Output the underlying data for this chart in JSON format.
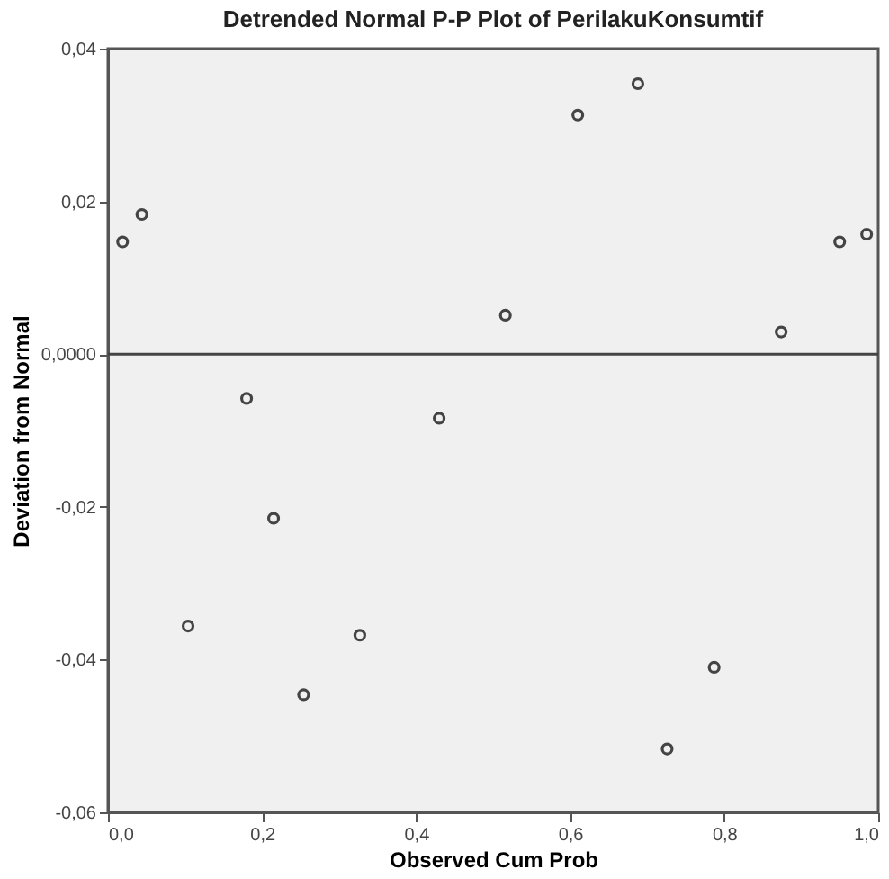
{
  "chart_data": {
    "type": "scatter",
    "title": "Detrended Normal P-P Plot of PerilakuKonsumtif",
    "xlabel": "Observed Cum Prob",
    "ylabel": "Deviation from Normal",
    "x": [
      0.019,
      0.044,
      0.104,
      0.18,
      0.215,
      0.254,
      0.327,
      0.43,
      0.516,
      0.61,
      0.688,
      0.726,
      0.787,
      0.874,
      0.95,
      0.985
    ],
    "series": [
      {
        "color": "#444444",
        "values": [
          0.0147,
          0.0183,
          -0.0356,
          -0.0058,
          -0.0215,
          -0.0446,
          -0.0368,
          -0.0084,
          0.0051,
          0.0313,
          0.0354,
          -0.0517,
          -0.041,
          0.0029,
          0.0147,
          0.0157
        ]
      }
    ],
    "marker": "circle",
    "xlim": [
      0,
      1
    ],
    "ylim": [
      -0.06,
      0.04
    ],
    "xticks": [
      {
        "value": 0,
        "label": "0,0"
      },
      {
        "value": 0.2,
        "label": "0,2"
      },
      {
        "value": 0.4,
        "label": "0,4"
      },
      {
        "value": 0.6,
        "label": "0,6"
      },
      {
        "value": 0.8,
        "label": "0,8"
      },
      {
        "value": 1,
        "label": "1,0"
      }
    ],
    "yticks": [
      {
        "value": -0.06,
        "label": "-0,06"
      },
      {
        "value": -0.04,
        "label": "-0,04"
      },
      {
        "value": -0.02,
        "label": "-0,02"
      },
      {
        "value": 0,
        "label": "0,0000"
      },
      {
        "value": 0.02,
        "label": "0,02"
      },
      {
        "value": 0.04,
        "label": "0,04"
      }
    ],
    "ref_lines": [
      {
        "axis": "y",
        "value": 0,
        "color": "#444444"
      }
    ],
    "grid": false
  }
}
